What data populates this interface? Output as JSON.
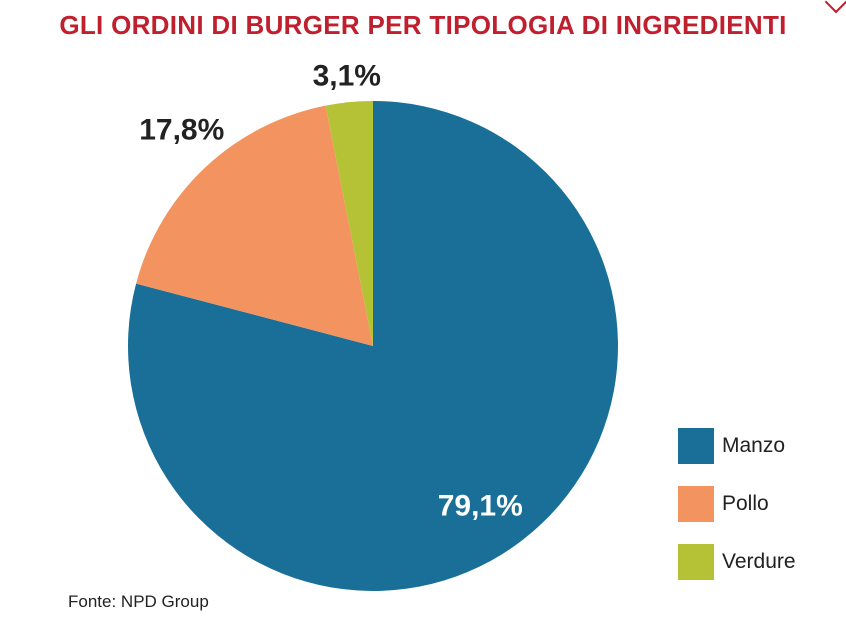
{
  "chart_data": {
    "type": "pie",
    "title": "GLI ORDINI DI BURGER PER TIPOLOGIA DI INGREDIENTI",
    "categories": [
      "Manzo",
      "Pollo",
      "Verdure"
    ],
    "values": [
      79.1,
      17.8,
      3.1
    ],
    "labels": [
      "79,1%",
      "17,8%",
      "3,1%"
    ],
    "colors": [
      "#1a6f98",
      "#f39460",
      "#b5c236"
    ],
    "legend_position": "bottom-right"
  },
  "source": "Fonte: NPD Group"
}
